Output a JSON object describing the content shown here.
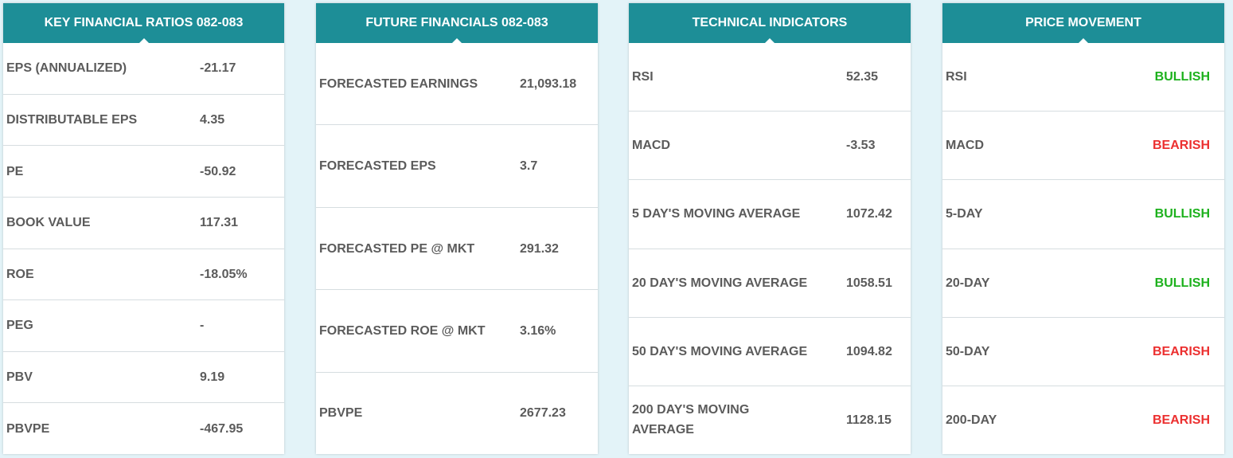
{
  "colors": {
    "header_bg": "#1d8e97",
    "bullish": "#1db11d",
    "bearish": "#ec3030",
    "page_bg": "#e3f3f8"
  },
  "cards": [
    {
      "title": "KEY FINANCIAL RATIOS 082-083",
      "rows": [
        {
          "label": "EPS (ANNUALIZED)",
          "value": "-21.17"
        },
        {
          "label": "DISTRIBUTABLE EPS",
          "value": "4.35"
        },
        {
          "label": "PE",
          "value": "-50.92"
        },
        {
          "label": "BOOK VALUE",
          "value": "117.31"
        },
        {
          "label": "ROE",
          "value": "-18.05%"
        },
        {
          "label": "PEG",
          "value": "-"
        },
        {
          "label": "PBV",
          "value": "9.19"
        },
        {
          "label": "PBVPE",
          "value": "-467.95"
        }
      ]
    },
    {
      "title": "FUTURE FINANCIALS 082-083",
      "rows": [
        {
          "label": "FORECASTED EARNINGS",
          "value": "21,093.18"
        },
        {
          "label": "FORECASTED EPS",
          "value": "3.7"
        },
        {
          "label": "FORECASTED PE @ MKT",
          "value": "291.32"
        },
        {
          "label": "FORECASTED ROE @ MKT",
          "value": "3.16%"
        },
        {
          "label": "PBVPE",
          "value": "2677.23"
        }
      ]
    },
    {
      "title": "TECHNICAL INDICATORS",
      "rows": [
        {
          "label": "RSI",
          "value": "52.35"
        },
        {
          "label": "MACD",
          "value": "-3.53"
        },
        {
          "label": "5 DAY'S MOVING AVERAGE",
          "value": "1072.42"
        },
        {
          "label": "20 DAY'S MOVING AVERAGE",
          "value": "1058.51"
        },
        {
          "label": "50 DAY'S MOVING AVERAGE",
          "value": "1094.82"
        },
        {
          "label": "200 DAY'S MOVING AVERAGE",
          "value": "1128.15"
        }
      ]
    },
    {
      "title": "PRICE MOVEMENT",
      "rows": [
        {
          "label": "RSI",
          "value": "BULLISH",
          "signal": "bullish"
        },
        {
          "label": "MACD",
          "value": "BEARISH",
          "signal": "bearish"
        },
        {
          "label": "5-DAY",
          "value": "BULLISH",
          "signal": "bullish"
        },
        {
          "label": "20-DAY",
          "value": "BULLISH",
          "signal": "bullish"
        },
        {
          "label": "50-DAY",
          "value": "BEARISH",
          "signal": "bearish"
        },
        {
          "label": "200-DAY",
          "value": "BEARISH",
          "signal": "bearish"
        }
      ]
    }
  ]
}
